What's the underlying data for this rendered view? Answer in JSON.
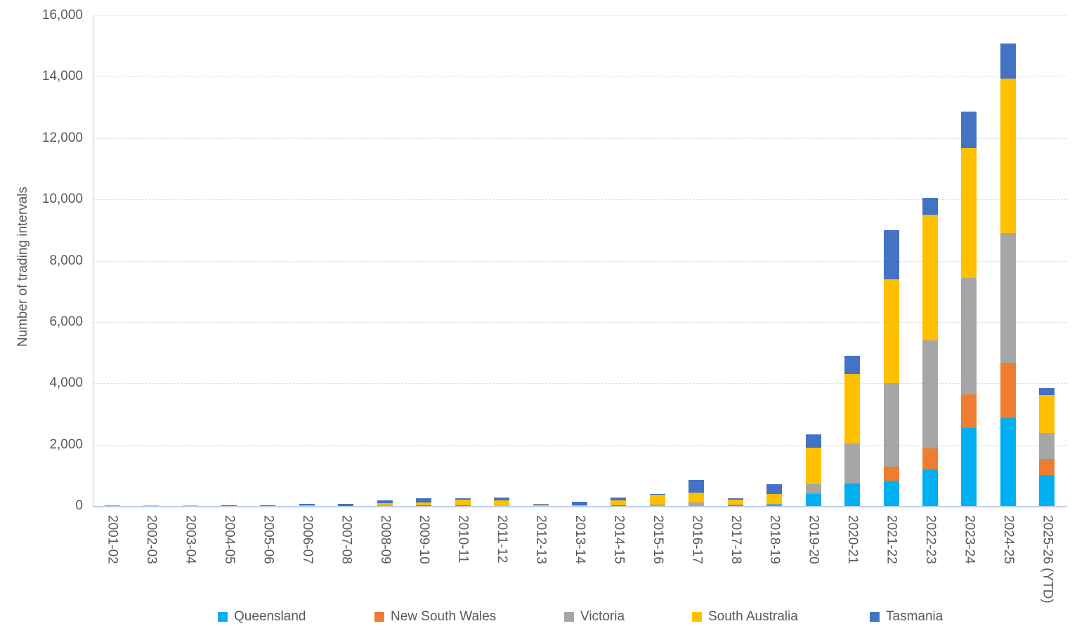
{
  "chart_data": {
    "type": "bar",
    "stacked": true,
    "title": "",
    "xlabel": "",
    "ylabel": "Number of trading intervals",
    "ylim": [
      0,
      16000
    ],
    "ytick_step": 2000,
    "ytick_labels": [
      "0",
      "2,000",
      "4,000",
      "6,000",
      "8,000",
      "10,000",
      "12,000",
      "14,000",
      "16,000"
    ],
    "grid": true,
    "gridline_style": "dashed",
    "legend_position": "bottom",
    "categories": [
      "2001-02",
      "2002-03",
      "2003-04",
      "2004-05",
      "2005-06",
      "2006-07",
      "2007-08",
      "2008-09",
      "2009-10",
      "2010-11",
      "2011-12",
      "2012-13",
      "2013-14",
      "2014-15",
      "2015-16",
      "2016-17",
      "2017-18",
      "2018-19",
      "2019-20",
      "2020-21",
      "2021-22",
      "2022-23",
      "2023-24",
      "2024-25",
      "2025-26 (YTD)"
    ],
    "series": [
      {
        "name": "Queensland",
        "color": "#00B0F0",
        "values": [
          0,
          0,
          0,
          0,
          0,
          0,
          0,
          0,
          20,
          15,
          10,
          0,
          0,
          20,
          0,
          0,
          20,
          40,
          380,
          720,
          830,
          1200,
          2550,
          2860,
          1000
        ]
      },
      {
        "name": "New South Wales",
        "color": "#ED7D31",
        "values": [
          0,
          0,
          0,
          0,
          0,
          0,
          0,
          0,
          0,
          0,
          0,
          0,
          0,
          0,
          0,
          0,
          0,
          0,
          30,
          45,
          450,
          680,
          1100,
          1800,
          530
        ]
      },
      {
        "name": "Victoria",
        "color": "#A6A6A6",
        "values": [
          30,
          0,
          0,
          0,
          0,
          0,
          0,
          20,
          0,
          0,
          0,
          10,
          0,
          0,
          50,
          120,
          20,
          30,
          310,
          1265,
          2720,
          3530,
          3790,
          4240,
          860
        ]
      },
      {
        "name": "South Australia",
        "color": "#FFC000",
        "values": [
          0,
          30,
          30,
          0,
          0,
          15,
          0,
          80,
          105,
          195,
          175,
          45,
          30,
          155,
          330,
          310,
          160,
          330,
          1180,
          2275,
          3400,
          4090,
          4240,
          5030,
          1230
        ]
      },
      {
        "name": "Tasmania",
        "color": "#4472C4",
        "values": [
          0,
          0,
          0,
          25,
          25,
          50,
          70,
          85,
          135,
          50,
          90,
          20,
          115,
          100,
          20,
          410,
          45,
          300,
          425,
          585,
          1600,
          540,
          1190,
          1150,
          215
        ]
      }
    ]
  },
  "colors": {
    "text": "#595959",
    "gridline": "#D5DFF2",
    "axis_line": "#BDD0E9",
    "background": "#FFFFFF"
  }
}
